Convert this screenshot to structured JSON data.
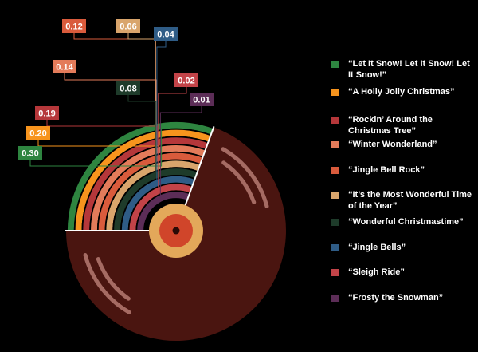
{
  "chart_data": {
    "type": "radial-bar",
    "title": "",
    "series": [
      {
        "name": "“Let It Snow! Let It Snow! Let It Snow!”",
        "value": 0.3,
        "label": "0.30",
        "color": "#2e8540"
      },
      {
        "name": "“A Holly Jolly Christmas”",
        "value": 0.2,
        "label": "0.20",
        "color": "#f7941d"
      },
      {
        "name": "“Rockin’ Around the Christmas Tree”",
        "value": 0.19,
        "label": "0.19",
        "color": "#b5373a"
      },
      {
        "name": "“Winter Wonderland”",
        "value": 0.14,
        "label": "0.14",
        "color": "#e37b5a"
      },
      {
        "name": "“Jingle Bell Rock”",
        "value": 0.12,
        "label": "0.12",
        "color": "#d95b3c"
      },
      {
        "name": "“It’s the Most Wonderful Time of the Year”",
        "value": 0.06,
        "label": "0.06",
        "color": "#d9a56c"
      },
      {
        "name": "“Wonderful Christmastime”",
        "value": 0.08,
        "label": "0.08",
        "color": "#1e3b2a"
      },
      {
        "name": "“Jingle Bells”",
        "value": 0.04,
        "label": "0.04",
        "color": "#2f5c86"
      },
      {
        "name": "“Sleigh Ride”",
        "value": 0.02,
        "label": "0.02",
        "color": "#c24348"
      },
      {
        "name": "“Frosty the Snowman”",
        "value": 0.01,
        "label": "0.01",
        "color": "#5c2d57"
      }
    ]
  },
  "colors": {
    "background": "#000000",
    "record": "#4a1510",
    "record_groove": "#b57a72",
    "center_label": "#e3a85a",
    "center_inner": "#d0452a",
    "spindle": "#2a0a06"
  }
}
